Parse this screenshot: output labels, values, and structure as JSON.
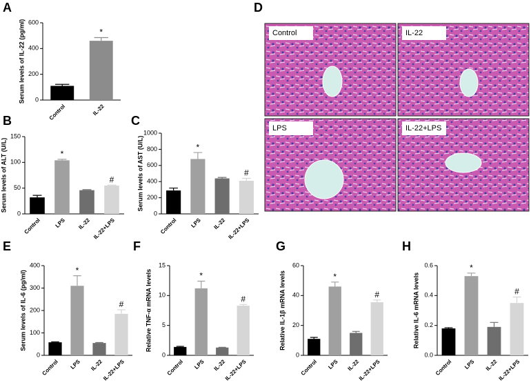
{
  "chart_data": [
    {
      "type": "bar",
      "panel_label": "A",
      "ylabel": "Serum levels of IL-22 (pg/ml)",
      "categories": [
        "Control",
        "IL-22"
      ],
      "values": [
        110,
        460
      ],
      "errors": [
        12,
        25
      ],
      "markers": [
        null,
        "*"
      ],
      "colors": [
        "#000000",
        "#8c8c8c"
      ],
      "ylim": [
        0,
        600
      ],
      "yticks": [
        0,
        200,
        400,
        600
      ]
    },
    {
      "type": "bar",
      "panel_label": "B",
      "ylabel": "Serum levels of ALT (U/L)",
      "categories": [
        "Control",
        "LPS",
        "IL-22",
        "IL-22+LPS"
      ],
      "values": [
        32,
        104,
        46,
        55
      ],
      "errors": [
        4,
        2,
        1,
        1
      ],
      "markers": [
        null,
        "*",
        null,
        "#"
      ],
      "colors": [
        "#000000",
        "#a0a0a0",
        "#6e6e6e",
        "#d6d6d6"
      ],
      "ylim": [
        0,
        150
      ],
      "yticks": [
        0,
        50,
        100,
        150
      ]
    },
    {
      "type": "bar",
      "panel_label": "C",
      "ylabel": "Serum levels of AST (U/L)",
      "categories": [
        "Control",
        "LPS",
        "IL-22",
        "IL-22+LPS"
      ],
      "values": [
        290,
        680,
        440,
        410
      ],
      "errors": [
        30,
        80,
        12,
        30
      ],
      "markers": [
        null,
        "*",
        null,
        "#"
      ],
      "colors": [
        "#000000",
        "#a0a0a0",
        "#6e6e6e",
        "#d6d6d6"
      ],
      "ylim": [
        0,
        1000
      ],
      "yticks": [
        0,
        200,
        400,
        600,
        800,
        1000
      ]
    },
    {
      "type": "bar",
      "panel_label": "E",
      "ylabel": "Serum levels of IL-6 (pg/ml)",
      "categories": [
        "Control",
        "LPS",
        "IL-22",
        "IL-22+LPS"
      ],
      "values": [
        58,
        310,
        55,
        185
      ],
      "errors": [
        2,
        45,
        2,
        18
      ],
      "markers": [
        null,
        "*",
        null,
        "#"
      ],
      "colors": [
        "#000000",
        "#a0a0a0",
        "#6e6e6e",
        "#d6d6d6"
      ],
      "ylim": [
        0,
        400
      ],
      "yticks": [
        0,
        100,
        200,
        300,
        400
      ]
    },
    {
      "type": "bar",
      "panel_label": "F",
      "ylabel": "Relative TNF-α mRNA levels",
      "categories": [
        "Control",
        "LPS",
        "IL-22",
        "IL-22+LPS"
      ],
      "values": [
        1.4,
        11.2,
        1.3,
        8.3
      ],
      "errors": [
        0.1,
        1.2,
        0.05,
        0.2
      ],
      "markers": [
        null,
        "*",
        null,
        "#"
      ],
      "colors": [
        "#000000",
        "#a0a0a0",
        "#6e6e6e",
        "#d6d6d6"
      ],
      "ylim": [
        0,
        15
      ],
      "yticks": [
        0,
        5,
        10,
        15
      ]
    },
    {
      "type": "bar",
      "panel_label": "G",
      "ylabel": "Relative IL-1β mRNA levels",
      "categories": [
        "Control",
        "LPS",
        "IL-22",
        "IL-22+LPS"
      ],
      "values": [
        11,
        46,
        15,
        35.5
      ],
      "errors": [
        1,
        3,
        1,
        1.5
      ],
      "markers": [
        null,
        "*",
        null,
        "#"
      ],
      "colors": [
        "#000000",
        "#a0a0a0",
        "#6e6e6e",
        "#d6d6d6"
      ],
      "ylim": [
        0,
        60
      ],
      "yticks": [
        0,
        20,
        40,
        60
      ]
    },
    {
      "type": "bar",
      "panel_label": "H",
      "ylabel": "Relative IL-6 mRNA levels",
      "categories": [
        "Control",
        "LPS",
        "IL-22",
        "IL-22+LPS"
      ],
      "values": [
        0.18,
        0.53,
        0.19,
        0.35
      ],
      "errors": [
        0.005,
        0.02,
        0.03,
        0.04
      ],
      "markers": [
        null,
        "*",
        null,
        "#"
      ],
      "colors": [
        "#000000",
        "#a0a0a0",
        "#6e6e6e",
        "#d6d6d6"
      ],
      "ylim": [
        0,
        0.6
      ],
      "yticks": [
        {
          "value": 0,
          "label": "0.0"
        },
        0.2,
        0.4,
        0.6
      ]
    }
  ],
  "histology": {
    "panel_label": "D",
    "panels": [
      "Control",
      "IL-22",
      "LPS",
      "IL-22+LPS"
    ]
  }
}
